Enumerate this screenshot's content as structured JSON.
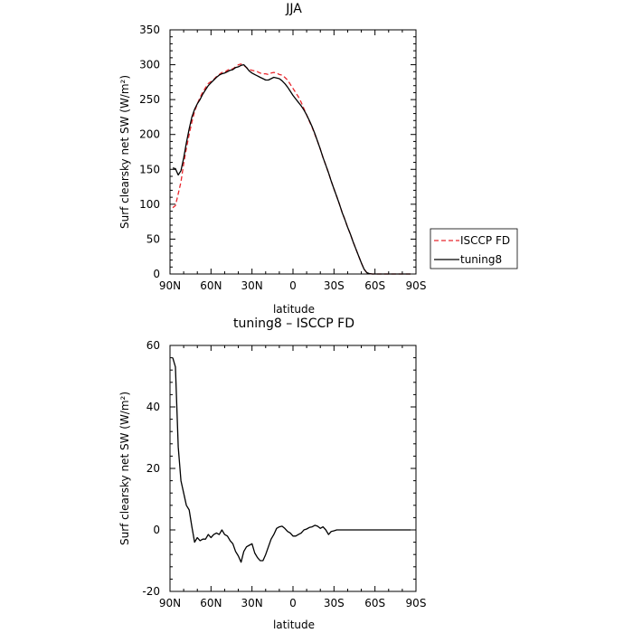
{
  "chart_data": [
    {
      "type": "line",
      "title": "JJA",
      "xlabel": "latitude",
      "ylabel": "Surf clearsky net SW (W/m²)",
      "xlim": [
        90,
        -90
      ],
      "ylim": [
        0,
        350
      ],
      "x_ticks": [
        90,
        60,
        30,
        0,
        -30,
        -60,
        -90
      ],
      "x_tick_labels": [
        "90N",
        "60N",
        "30N",
        "0",
        "30S",
        "60S",
        "90S"
      ],
      "y_ticks": [
        0,
        50,
        100,
        150,
        200,
        250,
        300,
        350
      ],
      "y_tick_labels": [
        "0",
        "50",
        "100",
        "150",
        "200",
        "250",
        "300",
        "350"
      ],
      "legend": "outside-right",
      "grid": false,
      "series": [
        {
          "name": "ISCCP FD",
          "color": "#e8272d",
          "dash": "dashed",
          "x": [
            88,
            86,
            84,
            82,
            80,
            78,
            76,
            74,
            72,
            70,
            68,
            66,
            64,
            62,
            60,
            58,
            56,
            54,
            52,
            50,
            48,
            46,
            44,
            42,
            40,
            38,
            36,
            34,
            32,
            30,
            28,
            26,
            24,
            22,
            20,
            18,
            16,
            14,
            12,
            10,
            8,
            6,
            4,
            2,
            0,
            -2,
            -4,
            -6,
            -8,
            -10,
            -12,
            -14,
            -16,
            -18,
            -20,
            -22,
            -24,
            -26,
            -28,
            -30,
            -32,
            -34,
            -36,
            -38,
            -40,
            -42,
            -44,
            -46,
            -48,
            -50,
            -52,
            -54,
            -56,
            -58,
            -60,
            -62,
            -64,
            -66,
            -68,
            -70,
            -72,
            -74,
            -76,
            -78,
            -80,
            -82,
            -84,
            -86
          ],
          "values": [
            95,
            98,
            115,
            132,
            158,
            180,
            200,
            218,
            233,
            244,
            253,
            261,
            267,
            273,
            276,
            279,
            283,
            286,
            289,
            289,
            292,
            294,
            294,
            297,
            300,
            301,
            299,
            296,
            293,
            292,
            291,
            290,
            288,
            287,
            287,
            286,
            288,
            289,
            288,
            286,
            285,
            282,
            278,
            272,
            266,
            260,
            254,
            246,
            237,
            228,
            219,
            210,
            200,
            190,
            179,
            167,
            156,
            145,
            133,
            122,
            111,
            100,
            88,
            78,
            67,
            57,
            46,
            36,
            26,
            16,
            7,
            2,
            0.5,
            0,
            0,
            0,
            0,
            0,
            0,
            0,
            0,
            0,
            0,
            0,
            0,
            0,
            0,
            0
          ]
        },
        {
          "name": "tuning8",
          "color": "#000000",
          "dash": "solid",
          "x": [
            88,
            86,
            84,
            82,
            80,
            78,
            76,
            74,
            72,
            70,
            68,
            66,
            64,
            62,
            60,
            58,
            56,
            54,
            52,
            50,
            48,
            46,
            44,
            42,
            40,
            38,
            36,
            34,
            32,
            30,
            28,
            26,
            24,
            22,
            20,
            18,
            16,
            14,
            12,
            10,
            8,
            6,
            4,
            2,
            0,
            -2,
            -4,
            -6,
            -8,
            -10,
            -12,
            -14,
            -16,
            -18,
            -20,
            -22,
            -24,
            -26,
            -28,
            -30,
            -32,
            -34,
            -36,
            -38,
            -40,
            -42,
            -44,
            -46,
            -48,
            -50,
            -52,
            -54,
            -56,
            -58,
            -60,
            -62,
            -64,
            -66,
            -68,
            -70,
            -72,
            -74,
            -76,
            -78,
            -80,
            -82,
            -84,
            -86
          ],
          "values": [
            152,
            151,
            142,
            148,
            166,
            188,
            208,
            225,
            236,
            244,
            250,
            258,
            264,
            270,
            274,
            278,
            282,
            285,
            287,
            288,
            290,
            292,
            293,
            296,
            297,
            299,
            300,
            296,
            291,
            288,
            286,
            284,
            282,
            280,
            278,
            278,
            280,
            282,
            281,
            280,
            277,
            273,
            268,
            262,
            256,
            251,
            246,
            241,
            235,
            228,
            220,
            211,
            201,
            190,
            179,
            167,
            156,
            145,
            133,
            122,
            111,
            100,
            88,
            78,
            67,
            57,
            46,
            36,
            26,
            16,
            7,
            2,
            0.5,
            0,
            0,
            0,
            0,
            0,
            0,
            0,
            0,
            0,
            0,
            0,
            0,
            0,
            0,
            0
          ]
        }
      ]
    },
    {
      "type": "line",
      "title": "tuning8 – ISCCP FD",
      "xlabel": "latitude",
      "ylabel": "Surf clearsky net SW (W/m²)",
      "xlim": [
        90,
        -90
      ],
      "ylim": [
        -20,
        60
      ],
      "x_ticks": [
        90,
        60,
        30,
        0,
        -30,
        -60,
        -90
      ],
      "x_tick_labels": [
        "90N",
        "60N",
        "30N",
        "0",
        "30S",
        "60S",
        "90S"
      ],
      "y_ticks": [
        -20,
        0,
        20,
        40,
        60
      ],
      "y_tick_labels": [
        "-20",
        "0",
        "20",
        "40",
        "60"
      ],
      "grid": false,
      "series": [
        {
          "color": "#000000",
          "dash": "solid",
          "x": [
            88,
            86,
            84,
            82,
            80,
            78,
            76,
            74,
            72,
            70,
            68,
            66,
            64,
            62,
            60,
            58,
            56,
            54,
            52,
            50,
            48,
            46,
            44,
            42,
            40,
            38,
            36,
            34,
            32,
            30,
            28,
            26,
            24,
            22,
            20,
            18,
            16,
            14,
            12,
            10,
            8,
            6,
            4,
            2,
            0,
            -2,
            -4,
            -6,
            -8,
            -10,
            -12,
            -14,
            -16,
            -18,
            -20,
            -22,
            -24,
            -26,
            -28,
            -30,
            -32,
            -34,
            -36,
            -38,
            -40,
            -42,
            -44,
            -46,
            -48,
            -50,
            -52,
            -54,
            -56,
            -58,
            -60,
            -62,
            -64,
            -66,
            -68,
            -70,
            -72,
            -74,
            -76,
            -78,
            -80,
            -82,
            -84,
            -86
          ],
          "values": [
            56,
            53,
            27,
            16,
            12,
            8,
            6.5,
            1,
            -4,
            -2.5,
            -3.5,
            -3,
            -3,
            -1.5,
            -2.5,
            -1.5,
            -1,
            -1.5,
            0,
            -1.5,
            -2,
            -3.5,
            -4.5,
            -7,
            -8.5,
            -10.5,
            -7,
            -5.5,
            -5,
            -4.5,
            -7.5,
            -9,
            -10,
            -10,
            -8,
            -5.5,
            -3,
            -1.5,
            0.5,
            1,
            1.2,
            0.5,
            -0.5,
            -1,
            -2,
            -2,
            -1.5,
            -1,
            0,
            0.3,
            0.8,
            1,
            1.5,
            1.2,
            0.5,
            1,
            0,
            -1.5,
            -0.5,
            -0.3,
            0,
            0,
            0,
            0,
            0,
            0,
            0,
            0,
            0,
            0,
            0,
            0,
            0,
            0,
            0,
            0,
            0,
            0,
            0,
            0,
            0,
            0,
            0,
            0,
            0,
            0,
            0,
            0
          ]
        }
      ]
    }
  ]
}
